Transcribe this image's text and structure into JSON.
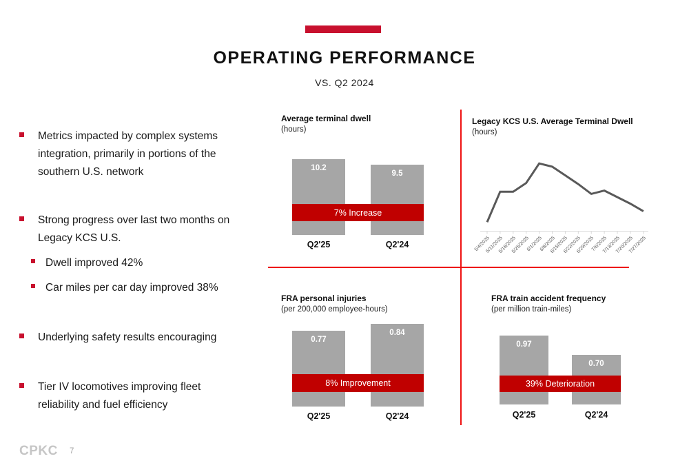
{
  "slide": {
    "title": "OPERATING PERFORMANCE",
    "subtitle": "VS. Q2 2024",
    "footer": {
      "logo_text": "CPKC",
      "page_number": "7"
    }
  },
  "colors": {
    "brand_crimson": "#C8102E",
    "chart_band_red": "#C00000",
    "divider_red": "#EE1111",
    "bar_gray": "#A6A6A6",
    "trend_line_gray": "#595959",
    "axis_gray": "#D9D9D9",
    "logo_gray": "#C6C6C6"
  },
  "bullets": [
    {
      "level": 1,
      "text": "Metrics impacted by complex systems integration, primarily in portions of the southern U.S. network"
    },
    {
      "level": 1,
      "text": "Strong progress over last two months on Legacy KCS U.S."
    },
    {
      "level": 2,
      "text": "Dwell improved 42%"
    },
    {
      "level": 2,
      "text": "Car miles per car day improved 38%"
    },
    {
      "level": 1,
      "text": "Underlying safety results encouraging"
    },
    {
      "level": 1,
      "text": "Tier IV locomotives improving fleet reliability and fuel efficiency"
    }
  ],
  "chart_data": [
    {
      "id": "average_terminal_dwell",
      "type": "bar",
      "title": "Average terminal dwell",
      "subtitle": "(hours)",
      "categories": [
        "Q2'25",
        "Q2'24"
      ],
      "values": [
        10.2,
        9.5
      ],
      "value_labels": [
        "10.2",
        "9.5"
      ],
      "band_label": "7% Increase",
      "ylim": [
        0,
        10.2
      ],
      "legend": "none",
      "grid": false
    },
    {
      "id": "legacy_kcs_us_average_terminal_dwell",
      "type": "line",
      "title": "Legacy KCS U.S. Average Terminal Dwell",
      "subtitle": "(hours)",
      "x": [
        "5/4/2025",
        "5/11/2025",
        "5/18/2025",
        "5/25/2025",
        "6/1/2025",
        "6/8/2025",
        "6/15/2025",
        "6/22/2025",
        "6/29/2025",
        "7/6/2025",
        "7/13/2025",
        "7/20/2025",
        "7/27/2025"
      ],
      "values": [
        8.6,
        11.4,
        11.4,
        12.2,
        14.0,
        13.7,
        12.9,
        12.1,
        11.2,
        11.5,
        10.9,
        10.3,
        9.6
      ],
      "ylim": [
        7.8,
        14.9
      ],
      "x_tick_rotation": 45,
      "legend": "none",
      "grid": false
    },
    {
      "id": "fra_personal_injuries",
      "type": "bar",
      "title": "FRA personal injuries",
      "subtitle": "(per 200,000 employee-hours)",
      "categories": [
        "Q2'25",
        "Q2'24"
      ],
      "values": [
        0.77,
        0.84
      ],
      "value_labels": [
        "0.77",
        "0.84"
      ],
      "band_label": "8% Improvement",
      "ylim": [
        0,
        0.84
      ],
      "legend": "none",
      "grid": false
    },
    {
      "id": "fra_train_accident_frequency",
      "type": "bar",
      "title": "FRA train accident frequency",
      "subtitle": "(per million train-miles)",
      "categories": [
        "Q2'25",
        "Q2'24"
      ],
      "values": [
        0.97,
        0.7
      ],
      "value_labels": [
        "0.97",
        "0.70"
      ],
      "band_label": "39% Deterioration",
      "ylim": [
        0,
        0.97
      ],
      "legend": "none",
      "grid": false
    }
  ]
}
